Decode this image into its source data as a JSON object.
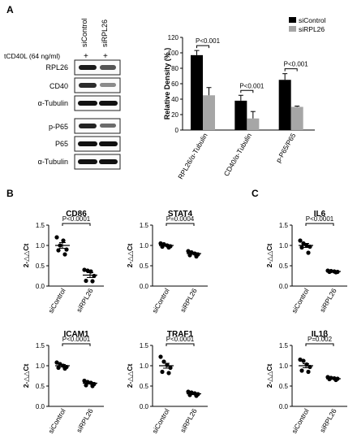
{
  "panel_labels": {
    "a": "A",
    "b": "B",
    "c": "C"
  },
  "blot": {
    "lane_labels": [
      "siControl",
      "siRPL26"
    ],
    "treatment_label": "tCD40L (64 ng/ml)",
    "treatment_marks": [
      "+",
      "+"
    ],
    "bands": [
      "RPL26",
      "CD40",
      "α-Tubulin",
      "p-P65",
      "P65",
      "α-Tubulin"
    ]
  },
  "chart_data": [
    {
      "id": "density",
      "type": "bar",
      "ylabel": "Relative Density (% )",
      "ylim": [
        0,
        120
      ],
      "yticks": [
        0,
        20,
        40,
        60,
        80,
        100,
        120
      ],
      "categories": [
        "RPL26/α-Tubulin",
        "CD40/α-Tubulin",
        "p-P65/P65"
      ],
      "series": [
        {
          "name": "siControl",
          "values": [
            97,
            38,
            65
          ],
          "errors": [
            6,
            7,
            8
          ]
        },
        {
          "name": "siRPL26",
          "values": [
            45,
            15,
            30
          ],
          "errors": [
            10,
            9,
            1
          ]
        }
      ],
      "annotations": [
        "P<0.001",
        "P<0.001",
        "P<0.001"
      ],
      "legend": "top-right",
      "colors": {
        "siControl": "#000000",
        "siRPL26": "#a6a6a6"
      }
    },
    {
      "id": "cd86",
      "type": "scatter",
      "title": "CD86",
      "ylabel": "2-△△Ct",
      "ylim": [
        0,
        1.5
      ],
      "yticks": [
        "0.0",
        "0.5",
        "1.0",
        "1.5"
      ],
      "categories": [
        "siControl",
        "siRPL26"
      ],
      "pvalue": "P<0.0001",
      "points": [
        [
          1.2,
          1.0,
          1.12,
          0.9,
          0.88,
          0.78
        ],
        [
          0.4,
          0.38,
          0.36,
          0.25,
          0.13,
          0.12
        ]
      ],
      "means": [
        1.0,
        0.27
      ],
      "sem": [
        0.07,
        0.06
      ]
    },
    {
      "id": "stat4",
      "type": "scatter",
      "title": "STAT4",
      "ylabel": "2-△△Ct",
      "ylim": [
        0,
        1.5
      ],
      "yticks": [
        "0.0",
        "0.5",
        "1.0",
        "1.5"
      ],
      "categories": [
        "siControl",
        "siRPL26"
      ],
      "pvalue": "P=0.0004",
      "points": [
        [
          1.05,
          1.03,
          1.0,
          0.98,
          0.97,
          0.95
        ],
        [
          0.86,
          0.83,
          0.8,
          0.78,
          0.76,
          0.73
        ]
      ],
      "means": [
        1.0,
        0.8
      ],
      "sem": [
        0.02,
        0.02
      ]
    },
    {
      "id": "il6",
      "type": "scatter",
      "title": "IL6",
      "ylabel": "2-△△Ct",
      "ylim": [
        0,
        1.5
      ],
      "yticks": [
        "0.0",
        "0.5",
        "1.0",
        "1.5"
      ],
      "categories": [
        "siControl",
        "siRPL26"
      ],
      "pvalue": "P<0.0001",
      "points": [
        [
          1.12,
          1.05,
          1.0,
          0.97,
          0.95,
          0.82
        ],
        [
          0.38,
          0.37,
          0.36,
          0.35,
          0.35,
          0.34
        ]
      ],
      "means": [
        1.0,
        0.36
      ],
      "sem": [
        0.05,
        0.01
      ]
    },
    {
      "id": "icam1",
      "type": "scatter",
      "title": "ICAM1",
      "ylabel": "2-△△Ct",
      "ylim": [
        0,
        1.5
      ],
      "yticks": [
        "0.0",
        "0.5",
        "1.0",
        "1.5"
      ],
      "categories": [
        "siControl",
        "siRPL26"
      ],
      "pvalue": "P<0.0001",
      "points": [
        [
          1.08,
          1.04,
          1.0,
          0.97,
          0.95,
          0.93
        ],
        [
          0.63,
          0.6,
          0.58,
          0.55,
          0.52,
          0.5
        ]
      ],
      "means": [
        1.0,
        0.57
      ],
      "sem": [
        0.03,
        0.02
      ]
    },
    {
      "id": "traf1",
      "type": "scatter",
      "title": "TRAF1",
      "ylabel": "2-△△Ct",
      "ylim": [
        0,
        1.5
      ],
      "yticks": [
        "0.0",
        "0.5",
        "1.0",
        "1.5"
      ],
      "categories": [
        "siControl",
        "siRPL26"
      ],
      "pvalue": "P<0.0001",
      "points": [
        [
          1.22,
          1.1,
          1.02,
          0.95,
          0.85,
          0.82
        ],
        [
          0.36,
          0.34,
          0.32,
          0.3,
          0.28,
          0.26
        ]
      ],
      "means": [
        1.0,
        0.31
      ],
      "sem": [
        0.06,
        0.02
      ]
    },
    {
      "id": "il1b",
      "type": "scatter",
      "title": "IL1β",
      "ylabel": "2-△△Ct",
      "ylim": [
        0,
        1.5
      ],
      "yticks": [
        "0.0",
        "0.5",
        "1.0",
        "1.5"
      ],
      "categories": [
        "siControl",
        "siRPL26"
      ],
      "pvalue": "P=0.002",
      "points": [
        [
          1.15,
          1.12,
          1.03,
          0.97,
          0.88,
          0.85
        ],
        [
          0.72,
          0.7,
          0.69,
          0.68,
          0.67,
          0.65
        ]
      ],
      "means": [
        1.0,
        0.68
      ],
      "sem": [
        0.05,
        0.01
      ]
    }
  ]
}
